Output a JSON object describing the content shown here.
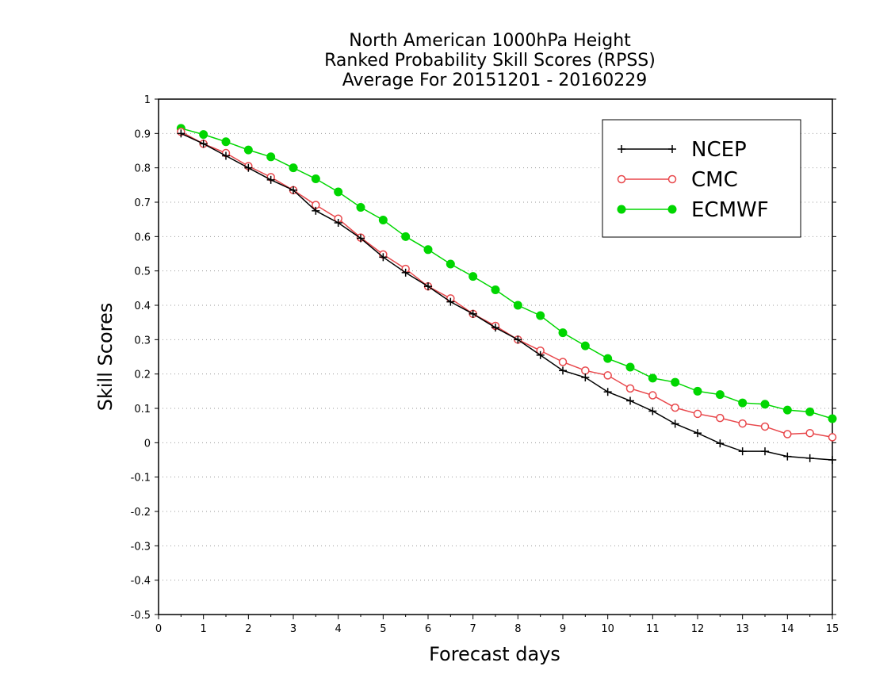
{
  "chart_data": {
    "type": "line",
    "title_lines": [
      "North American 1000hPa Height",
      "Ranked Probability Skill Scores (RPSS)",
      "Average For 20151201 - 20160229"
    ],
    "xlabel": "Forecast days",
    "ylabel": "Skill Scores",
    "xlim": [
      0,
      15
    ],
    "ylim": [
      -0.5,
      1
    ],
    "xticks": [
      "0",
      "1",
      "2",
      "3",
      "4",
      "5",
      "6",
      "7",
      "8",
      "9",
      "10",
      "11",
      "12",
      "13",
      "14",
      "15"
    ],
    "yticks": [
      "-0.5",
      "-0.4",
      "-0.3",
      "-0.2",
      "-0.1",
      "0",
      "0.1",
      "0.2",
      "0.3",
      "0.4",
      "0.5",
      "0.6",
      "0.7",
      "0.8",
      "0.9",
      "1"
    ],
    "grid": "horizontal dotted",
    "legend_position": "top-right",
    "x": [
      0.5,
      1,
      1.5,
      2,
      2.5,
      3,
      3.5,
      4,
      4.5,
      5,
      5.5,
      6,
      6.5,
      7,
      7.5,
      8,
      8.5,
      9,
      9.5,
      10,
      10.5,
      11,
      11.5,
      12,
      12.5,
      13,
      13.5,
      14,
      14.5,
      15
    ],
    "series": [
      {
        "name": "NCEP",
        "color": "#000000",
        "marker": "plus",
        "values": [
          0.9,
          0.87,
          0.835,
          0.8,
          0.765,
          0.735,
          0.675,
          0.64,
          0.595,
          0.54,
          0.495,
          0.455,
          0.41,
          0.375,
          0.335,
          0.3,
          0.255,
          0.21,
          0.19,
          0.148,
          0.122,
          0.092,
          0.055,
          0.028,
          -0.002,
          -0.025,
          -0.025,
          -0.04,
          -0.045,
          -0.05
        ]
      },
      {
        "name": "CMC",
        "color": "#e8474b",
        "marker": "open-circle",
        "values": [
          0.905,
          0.87,
          0.843,
          0.805,
          0.773,
          0.735,
          0.692,
          0.652,
          0.597,
          0.548,
          0.506,
          0.455,
          0.42,
          0.375,
          0.34,
          0.3,
          0.268,
          0.235,
          0.21,
          0.196,
          0.158,
          0.138,
          0.102,
          0.084,
          0.072,
          0.056,
          0.047,
          0.025,
          0.028,
          0.016
        ]
      },
      {
        "name": "ECMWF",
        "color": "#00d600",
        "marker": "filled-circle",
        "values": [
          0.915,
          0.897,
          0.876,
          0.852,
          0.832,
          0.8,
          0.768,
          0.73,
          0.685,
          0.648,
          0.6,
          0.562,
          0.52,
          0.484,
          0.445,
          0.4,
          0.37,
          0.32,
          0.282,
          0.245,
          0.22,
          0.188,
          0.176,
          0.15,
          0.14,
          0.116,
          0.112,
          0.095,
          0.09,
          0.07
        ]
      }
    ]
  }
}
